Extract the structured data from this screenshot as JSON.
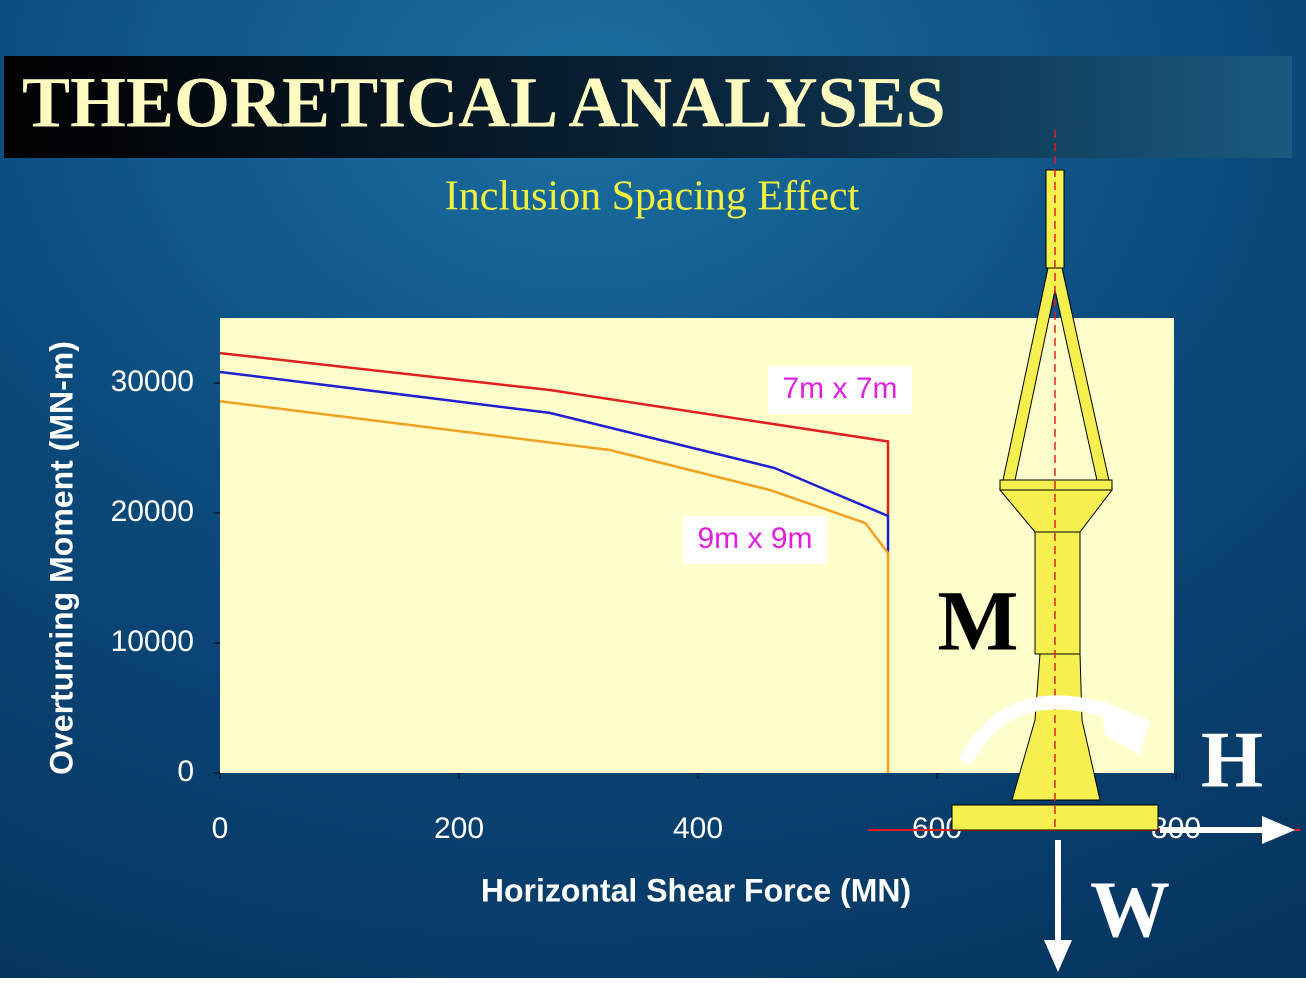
{
  "title": "THEORETICAL ANALYSES",
  "subtitle": "Inclusion Spacing Effect",
  "diagram_labels": [
    "M",
    "H",
    "W"
  ],
  "chart_data": {
    "type": "line",
    "xlabel": "Horizontal Shear Force (MN)",
    "ylabel": "Overturning Moment  (MN-m)",
    "xlim": [
      0,
      800
    ],
    "xticks": [
      0,
      200,
      400,
      600,
      800
    ],
    "ylim": [
      0,
      35000
    ],
    "yticks": [
      0,
      10000,
      20000,
      30000
    ],
    "series": [
      {
        "name": "7m x 7m",
        "color": "#e0201c",
        "x": [
          0,
          276,
          559,
          559
        ],
        "values": [
          32300,
          29460,
          25500,
          19770
        ]
      },
      {
        "color": "#2020d0",
        "x": [
          0,
          276,
          464,
          559,
          559
        ],
        "values": [
          30850,
          27700,
          23460,
          19770,
          16920
        ]
      },
      {
        "name": "9m x 9m",
        "color": "#f0a020",
        "x": [
          0,
          326,
          460,
          540,
          559,
          559
        ],
        "values": [
          28600,
          24850,
          21770,
          19230,
          16920,
          0
        ]
      }
    ]
  }
}
